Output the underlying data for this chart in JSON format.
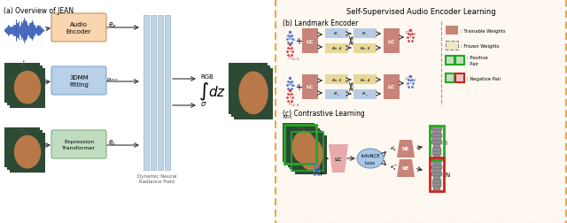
{
  "title_a": "(a) Overview of JEAN",
  "title_b": "(b) Landmark Encoder",
  "title_c": "(c) Contrastive Learning",
  "title_self": "Self-Supervised Audio Encoder Learning",
  "bg_color": "#ffffff",
  "orange_box": "#f9d5b0",
  "blue_box": "#b8d0e8",
  "green_box": "#c0ddc0",
  "lc_color": "#c8847a",
  "light_blue_box": "#b8cce4",
  "light_yellow": "#e8d898",
  "dashed_border": "#e8a84a",
  "face_dark": "#1a3020",
  "face_mid": "#243828",
  "face_main": "#2d4a35",
  "face_skin": "#b87848",
  "wave_color": "#4466bb",
  "nerf_stripe": "#c0d4e8",
  "nerf_edge": "#98b4cc"
}
